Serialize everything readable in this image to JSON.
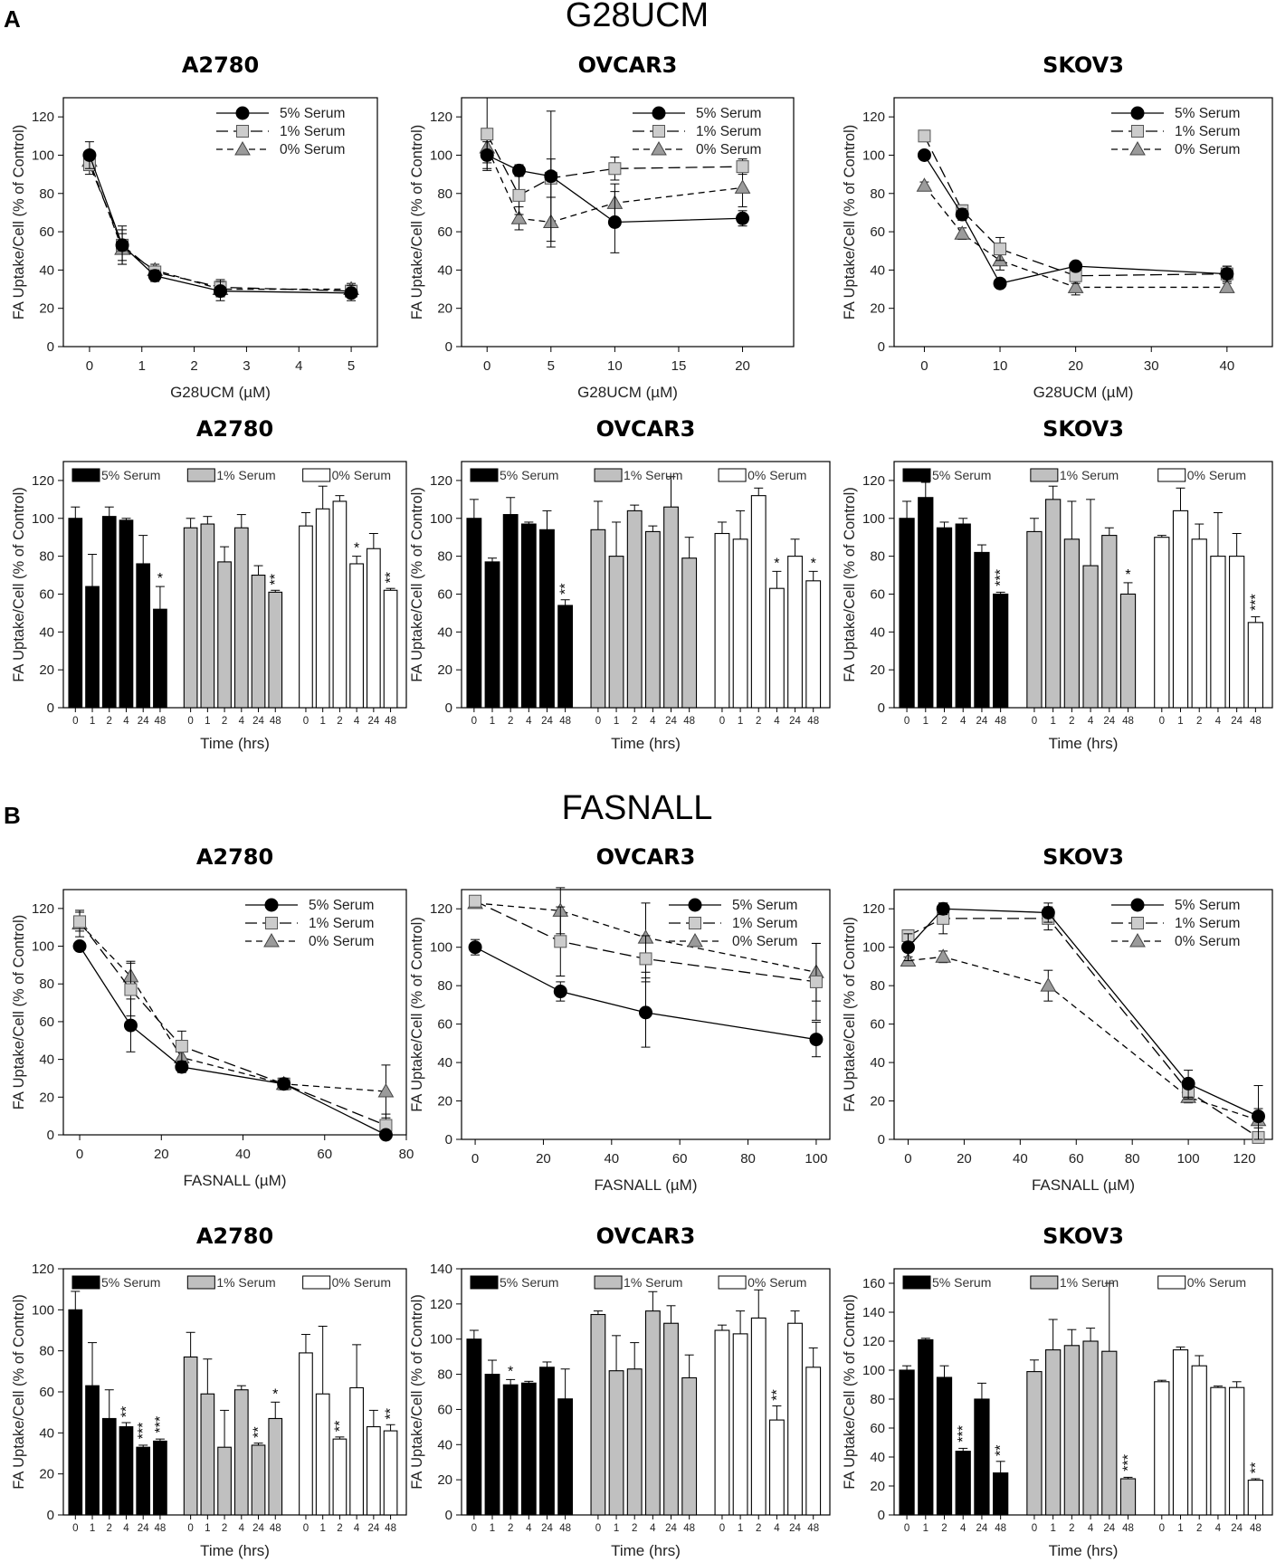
{
  "panel_a": {
    "letter": "A",
    "title": "G28UCM"
  },
  "panel_b": {
    "letter": "B",
    "title": "FASNALL"
  },
  "chart_data": [
    {
      "id": "a-line-a2780",
      "type": "line",
      "title": "A2780",
      "xlabel": "G28UCM (µM)",
      "ylabel": "FA Uptake/Cell (% of Control)",
      "xlim": [
        -0.5,
        5.5
      ],
      "ylim": [
        0,
        130
      ],
      "xticks": [
        0,
        1,
        2,
        3,
        4,
        5
      ],
      "yticks": [
        0,
        20,
        40,
        60,
        80,
        100,
        120
      ],
      "x": [
        0,
        0.625,
        1.25,
        2.5,
        5
      ],
      "series": [
        {
          "name": "5% Serum",
          "values": [
            100,
            53,
            37,
            29,
            28
          ],
          "err": [
            7,
            8,
            3,
            5,
            4
          ]
        },
        {
          "name": "1% Serum",
          "values": [
            95,
            53,
            39,
            31,
            29
          ],
          "err": [
            5,
            10,
            3,
            4,
            3
          ]
        },
        {
          "name": "0% Serum",
          "values": [
            97,
            51,
            40,
            30,
            30
          ],
          "err": [
            5,
            8,
            3,
            4,
            3
          ]
        }
      ]
    },
    {
      "id": "a-line-ovcar3",
      "type": "line",
      "title": "OVCAR3",
      "xlabel": "G28UCM (µM)",
      "ylabel": "FA Uptake/Cell (% of Control)",
      "xlim": [
        -2,
        24
      ],
      "ylim": [
        0,
        130
      ],
      "xticks": [
        0,
        5,
        10,
        15,
        20
      ],
      "yticks": [
        0,
        20,
        40,
        60,
        80,
        100,
        120
      ],
      "x": [
        0,
        2.5,
        5,
        10,
        20
      ],
      "series": [
        {
          "name": "5% Serum",
          "values": [
            100,
            92,
            89,
            65,
            67
          ],
          "err": [
            7,
            3,
            34,
            16,
            4
          ]
        },
        {
          "name": "1% Serum",
          "values": [
            111,
            79,
            88,
            93,
            94
          ],
          "err": [
            19,
            10,
            10,
            6,
            4
          ]
        },
        {
          "name": "0% Serum",
          "values": [
            104,
            67,
            65,
            75,
            83
          ],
          "err": [
            8,
            6,
            13,
            10,
            10
          ]
        }
      ]
    },
    {
      "id": "a-line-skov3",
      "type": "line",
      "title": "SKOV3",
      "xlabel": "G28UCM (µM)",
      "ylabel": "FA Uptake/Cell (% of Control)",
      "xlim": [
        -4,
        46
      ],
      "ylim": [
        0,
        130
      ],
      "xticks": [
        0,
        10,
        20,
        30,
        40
      ],
      "yticks": [
        0,
        20,
        40,
        60,
        80,
        100,
        120
      ],
      "x": [
        0,
        5,
        10,
        20,
        40
      ],
      "series": [
        {
          "name": "5% Serum",
          "values": [
            100,
            69,
            33,
            42,
            38
          ],
          "err": [
            2,
            3,
            2,
            2,
            4
          ]
        },
        {
          "name": "1% Serum",
          "values": [
            110,
            71,
            51,
            37,
            38
          ],
          "err": [
            2,
            3,
            6,
            4,
            4
          ]
        },
        {
          "name": "0% Serum",
          "values": [
            84,
            59,
            45,
            31,
            31
          ],
          "err": [
            2,
            3,
            5,
            4,
            2
          ]
        }
      ]
    },
    {
      "id": "a-bar-a2780",
      "type": "bar",
      "title": "A2780",
      "xlabel": "Time (hrs)",
      "ylabel": "FA Uptake/Cell (% of Control)",
      "ylim": [
        0,
        130
      ],
      "yticks": [
        0,
        20,
        40,
        60,
        80,
        100,
        120
      ],
      "categories": [
        "0",
        "1",
        "2",
        "4",
        "24",
        "48"
      ],
      "series": [
        {
          "name": "5% Serum",
          "values": [
            100,
            64,
            101,
            99,
            76,
            52
          ],
          "err": [
            6,
            17,
            5,
            1,
            15,
            12
          ],
          "sig": [
            "",
            "",
            "",
            "",
            "",
            "*"
          ]
        },
        {
          "name": "1% Serum",
          "values": [
            95,
            97,
            77,
            95,
            70,
            61
          ],
          "err": [
            5,
            4,
            8,
            7,
            5,
            1
          ],
          "sig": [
            "",
            "",
            "",
            "",
            "",
            "**"
          ]
        },
        {
          "name": "0% Serum",
          "values": [
            96,
            105,
            109,
            76,
            84,
            62
          ],
          "err": [
            7,
            12,
            3,
            4,
            8,
            1
          ],
          "sig": [
            "",
            "",
            "",
            "*",
            "",
            "**"
          ]
        }
      ]
    },
    {
      "id": "a-bar-ovcar3",
      "type": "bar",
      "title": "OVCAR3",
      "xlabel": "Time (hrs)",
      "ylabel": "FA Uptake/Cell (% of Control)",
      "ylim": [
        0,
        130
      ],
      "yticks": [
        0,
        20,
        40,
        60,
        80,
        100,
        120
      ],
      "categories": [
        "0",
        "1",
        "2",
        "4",
        "24",
        "48"
      ],
      "series": [
        {
          "name": "5% Serum",
          "values": [
            100,
            77,
            102,
            97,
            94,
            54
          ],
          "err": [
            10,
            2,
            9,
            1,
            10,
            3
          ],
          "sig": [
            "",
            "",
            "",
            "",
            "",
            "**"
          ]
        },
        {
          "name": "1% Serum",
          "values": [
            94,
            80,
            104,
            93,
            106,
            79
          ],
          "err": [
            15,
            18,
            3,
            3,
            16,
            11
          ],
          "sig": [
            "",
            "",
            "",
            "",
            "",
            ""
          ]
        },
        {
          "name": "0% Serum",
          "values": [
            92,
            89,
            112,
            63,
            80,
            67
          ],
          "err": [
            6,
            15,
            4,
            9,
            9,
            5
          ],
          "sig": [
            "",
            "",
            "",
            "*",
            "",
            "*"
          ]
        }
      ]
    },
    {
      "id": "a-bar-skov3",
      "type": "bar",
      "title": "SKOV3",
      "xlabel": "Time (hrs)",
      "ylabel": "FA Uptake/Cell (% of Control)",
      "ylim": [
        0,
        130
      ],
      "yticks": [
        0,
        20,
        40,
        60,
        80,
        100,
        120
      ],
      "categories": [
        "0",
        "1",
        "2",
        "4",
        "24",
        "48"
      ],
      "series": [
        {
          "name": "5% Serum",
          "values": [
            100,
            111,
            95,
            97,
            82,
            60
          ],
          "err": [
            9,
            8,
            3,
            3,
            4,
            1
          ],
          "sig": [
            "",
            "",
            "",
            "",
            "",
            "***"
          ]
        },
        {
          "name": "1% Serum",
          "values": [
            93,
            110,
            89,
            75,
            91,
            60
          ],
          "err": [
            7,
            7,
            20,
            35,
            4,
            6
          ],
          "sig": [
            "",
            "",
            "",
            "",
            "",
            "*"
          ]
        },
        {
          "name": "0% Serum",
          "values": [
            90,
            104,
            89,
            80,
            80,
            45
          ],
          "err": [
            1,
            12,
            8,
            23,
            12,
            3
          ],
          "sig": [
            "",
            "",
            "",
            "",
            "",
            "***"
          ]
        }
      ]
    },
    {
      "id": "b-line-a2780",
      "type": "line",
      "title": "A2780",
      "xlabel": "FASNALL (µM)",
      "ylabel": "FA Uptake/Cell (% of Control)",
      "xlim": [
        -4,
        80
      ],
      "ylim": [
        0,
        130
      ],
      "xticks": [
        0,
        20,
        40,
        60,
        80
      ],
      "yticks": [
        0,
        20,
        40,
        60,
        80,
        100,
        120
      ],
      "x": [
        0,
        12.5,
        25,
        50,
        75
      ],
      "series": [
        {
          "name": "5% Serum",
          "values": [
            100,
            58,
            36,
            27,
            0
          ],
          "err": [
            2,
            14,
            3,
            3,
            2
          ]
        },
        {
          "name": "1% Serum",
          "values": [
            113,
            77,
            47,
            27,
            5
          ],
          "err": [
            5,
            14,
            8,
            3,
            6
          ]
        },
        {
          "name": "0% Serum",
          "values": [
            112,
            84,
            41,
            27,
            23
          ],
          "err": [
            7,
            8,
            6,
            3,
            14
          ]
        }
      ]
    },
    {
      "id": "b-line-ovcar3",
      "type": "line",
      "title": "OVCAR3",
      "xlabel": "FASNALL (µM)",
      "ylabel": "FA Uptake/Cell (% of Control)",
      "xlim": [
        -4,
        104
      ],
      "ylim": [
        0,
        130
      ],
      "xticks": [
        0,
        20,
        40,
        60,
        80,
        100
      ],
      "yticks": [
        0,
        20,
        40,
        60,
        80,
        100,
        120
      ],
      "x": [
        0,
        25,
        50,
        100
      ],
      "series": [
        {
          "name": "5% Serum",
          "values": [
            100,
            77,
            66,
            52
          ],
          "err": [
            4,
            5,
            18,
            9
          ]
        },
        {
          "name": "1% Serum",
          "values": [
            124,
            103,
            94,
            82
          ],
          "err": [
            2,
            18,
            12,
            20
          ]
        },
        {
          "name": "0% Serum",
          "values": [
            123,
            119,
            105,
            87
          ],
          "err": [
            2,
            12,
            18,
            15
          ]
        }
      ]
    },
    {
      "id": "b-line-skov3",
      "type": "line",
      "title": "SKOV3",
      "xlabel": "FASNALL (µM)",
      "ylabel": "FA Uptake/Cell (% of Control)",
      "xlim": [
        -5,
        130
      ],
      "ylim": [
        0,
        130
      ],
      "xticks": [
        0,
        20,
        40,
        60,
        80,
        100,
        120
      ],
      "yticks": [
        0,
        20,
        40,
        60,
        80,
        100,
        120
      ],
      "x": [
        0,
        12.5,
        50,
        100,
        125
      ],
      "series": [
        {
          "name": "5% Serum",
          "values": [
            100,
            120,
            118,
            29,
            12
          ],
          "err": [
            7,
            3,
            5,
            7,
            16
          ]
        },
        {
          "name": "1% Serum",
          "values": [
            106,
            115,
            115,
            25,
            1
          ],
          "err": [
            2,
            8,
            6,
            4,
            5
          ]
        },
        {
          "name": "0% Serum",
          "values": [
            93,
            95,
            80,
            22,
            10
          ],
          "err": [
            2,
            3,
            8,
            3,
            6
          ]
        }
      ]
    },
    {
      "id": "b-bar-a2780",
      "type": "bar",
      "title": "A2780",
      "xlabel": "Time (hrs)",
      "ylabel": "FA Uptake/Cell (% of Control)",
      "ylim": [
        0,
        120
      ],
      "yticks": [
        0,
        20,
        40,
        60,
        80,
        100,
        120
      ],
      "categories": [
        "0",
        "1",
        "2",
        "4",
        "24",
        "48"
      ],
      "series": [
        {
          "name": "5% Serum",
          "values": [
            100,
            63,
            47,
            43,
            33,
            36
          ],
          "err": [
            9,
            21,
            14,
            2,
            1,
            1
          ],
          "sig": [
            "",
            "",
            "",
            "**",
            "***",
            "***"
          ]
        },
        {
          "name": "1% Serum",
          "values": [
            77,
            59,
            33,
            61,
            34,
            47
          ],
          "err": [
            12,
            17,
            18,
            2,
            1,
            8
          ],
          "sig": [
            "",
            "",
            "",
            "",
            "**",
            "*"
          ]
        },
        {
          "name": "0% Serum",
          "values": [
            79,
            59,
            37,
            62,
            43,
            41
          ],
          "err": [
            9,
            33,
            1,
            21,
            8,
            3
          ],
          "sig": [
            "",
            "",
            "**",
            "",
            "",
            "**"
          ]
        }
      ]
    },
    {
      "id": "b-bar-ovcar3",
      "type": "bar",
      "title": "OVCAR3",
      "xlabel": "Time (hrs)",
      "ylabel": "FA Uptake/Cell (% of Control)",
      "ylim": [
        0,
        140
      ],
      "yticks": [
        0,
        20,
        40,
        60,
        80,
        100,
        120,
        140
      ],
      "categories": [
        "0",
        "1",
        "2",
        "4",
        "24",
        "48"
      ],
      "series": [
        {
          "name": "5% Serum",
          "values": [
            100,
            80,
            74,
            75,
            84,
            66
          ],
          "err": [
            5,
            8,
            3,
            1,
            3,
            17
          ],
          "sig": [
            "",
            "",
            "*",
            "",
            "",
            ""
          ]
        },
        {
          "name": "1% Serum",
          "values": [
            114,
            82,
            83,
            116,
            109,
            78
          ],
          "err": [
            2,
            20,
            15,
            11,
            10,
            13
          ],
          "sig": [
            "",
            "",
            "",
            "",
            "",
            ""
          ]
        },
        {
          "name": "0% Serum",
          "values": [
            105,
            103,
            112,
            54,
            109,
            84
          ],
          "err": [
            3,
            13,
            16,
            8,
            7,
            11
          ],
          "sig": [
            "",
            "",
            "",
            "**",
            "",
            ""
          ]
        }
      ]
    },
    {
      "id": "b-bar-skov3",
      "type": "bar",
      "title": "SKOV3",
      "xlabel": "Time (hrs)",
      "ylabel": "FA Uptake/Cell (% of Control)",
      "ylim": [
        0,
        170
      ],
      "yticks": [
        0,
        20,
        40,
        60,
        80,
        100,
        120,
        140,
        160
      ],
      "categories": [
        "0",
        "1",
        "2",
        "4",
        "24",
        "48"
      ],
      "series": [
        {
          "name": "5% Serum",
          "values": [
            100,
            121,
            95,
            44,
            80,
            29
          ],
          "err": [
            3,
            1,
            8,
            2,
            11,
            8
          ],
          "sig": [
            "",
            "",
            "",
            "***",
            "",
            "**"
          ]
        },
        {
          "name": "1% Serum",
          "values": [
            99,
            114,
            117,
            120,
            113,
            25
          ],
          "err": [
            8,
            21,
            11,
            9,
            47,
            1
          ],
          "sig": [
            "",
            "",
            "",
            "",
            "",
            "***"
          ]
        },
        {
          "name": "0% Serum",
          "values": [
            92,
            114,
            103,
            88,
            88,
            24
          ],
          "err": [
            1,
            2,
            7,
            1,
            4,
            1
          ],
          "sig": [
            "",
            "",
            "",
            "",
            "",
            "**"
          ]
        }
      ]
    }
  ]
}
